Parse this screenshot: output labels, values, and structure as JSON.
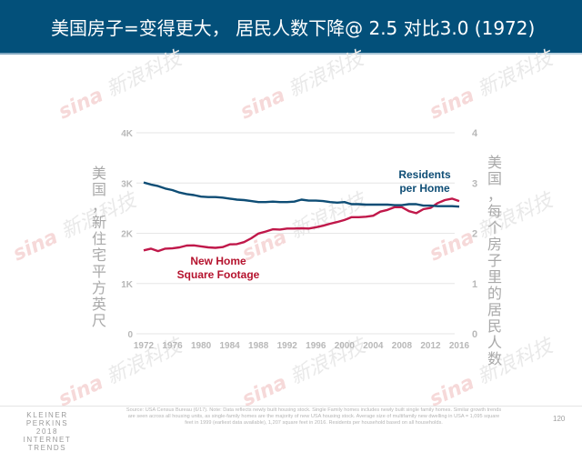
{
  "header": {
    "title": "美国房子=变得更大， 居民人数下降@ 2.5 对比3.0 (1972)"
  },
  "watermark": {
    "logo": "sina",
    "text": "新浪科技"
  },
  "chart_data": {
    "type": "line",
    "title": "",
    "xlabel": "",
    "ylabel_left": "美国，新住宅平方英尺",
    "ylabel_right": "美国，每个房子里的居民人数",
    "x_ticks": [
      "1972",
      "1976",
      "1980",
      "1984",
      "1988",
      "1992",
      "1996",
      "2000",
      "2004",
      "2008",
      "2012",
      "2016"
    ],
    "y_left_ticks": [
      "0",
      "1K",
      "2K",
      "3K",
      "4K"
    ],
    "y_right_ticks": [
      "0",
      "1",
      "2",
      "3",
      "4"
    ],
    "ylim_left": [
      0,
      4000
    ],
    "ylim_right": [
      0,
      4
    ],
    "grid": true,
    "x": [
      1972,
      1973,
      1974,
      1975,
      1976,
      1977,
      1978,
      1979,
      1980,
      1981,
      1982,
      1983,
      1984,
      1985,
      1986,
      1987,
      1988,
      1989,
      1990,
      1991,
      1992,
      1993,
      1994,
      1995,
      1996,
      1997,
      1998,
      1999,
      2000,
      2001,
      2002,
      2003,
      2004,
      2005,
      2006,
      2007,
      2008,
      2009,
      2010,
      2011,
      2012,
      2013,
      2014,
      2015,
      2016
    ],
    "series": [
      {
        "name": "New Home Square Footage",
        "axis": "left",
        "color": "#c0184a",
        "label_lines": [
          "New Home",
          "Square Footage"
        ],
        "values": [
          1660,
          1695,
          1645,
          1695,
          1700,
          1720,
          1755,
          1760,
          1740,
          1720,
          1710,
          1725,
          1780,
          1785,
          1825,
          1900,
          1995,
          2035,
          2080,
          2075,
          2095,
          2095,
          2100,
          2095,
          2120,
          2150,
          2190,
          2225,
          2265,
          2320,
          2320,
          2330,
          2350,
          2430,
          2465,
          2520,
          2520,
          2440,
          2400,
          2480,
          2505,
          2600,
          2660,
          2690,
          2640
        ]
      },
      {
        "name": "Residents per Home",
        "axis": "right",
        "color": "#0e4d75",
        "label_lines": [
          "Residents",
          "per Home"
        ],
        "values": [
          3.01,
          2.97,
          2.94,
          2.89,
          2.86,
          2.81,
          2.78,
          2.76,
          2.73,
          2.72,
          2.72,
          2.71,
          2.69,
          2.67,
          2.66,
          2.64,
          2.62,
          2.62,
          2.63,
          2.62,
          2.62,
          2.63,
          2.67,
          2.65,
          2.65,
          2.64,
          2.62,
          2.61,
          2.62,
          2.58,
          2.58,
          2.57,
          2.57,
          2.57,
          2.57,
          2.56,
          2.56,
          2.58,
          2.58,
          2.55,
          2.55,
          2.54,
          2.54,
          2.54,
          2.53
        ]
      }
    ]
  },
  "footer": {
    "brand_lines": [
      "KLEINER PERKINS",
      "2018",
      "INTERNET TRENDS"
    ],
    "source": "Source: USA Census Bureau (6/17). Note: Data reflects newly built housing stock. Single Family homes includes newly built single family homes. Similar growth trends are seen across all housing units, as single-family homes are the majority of new USA housing stock. Average size of multifamily new dwelling in USA = 1,095 square feet in 1999 (earliest data available), 1,207 square feet in 2016. Residents per household based on all households.",
    "page_number": "120"
  }
}
